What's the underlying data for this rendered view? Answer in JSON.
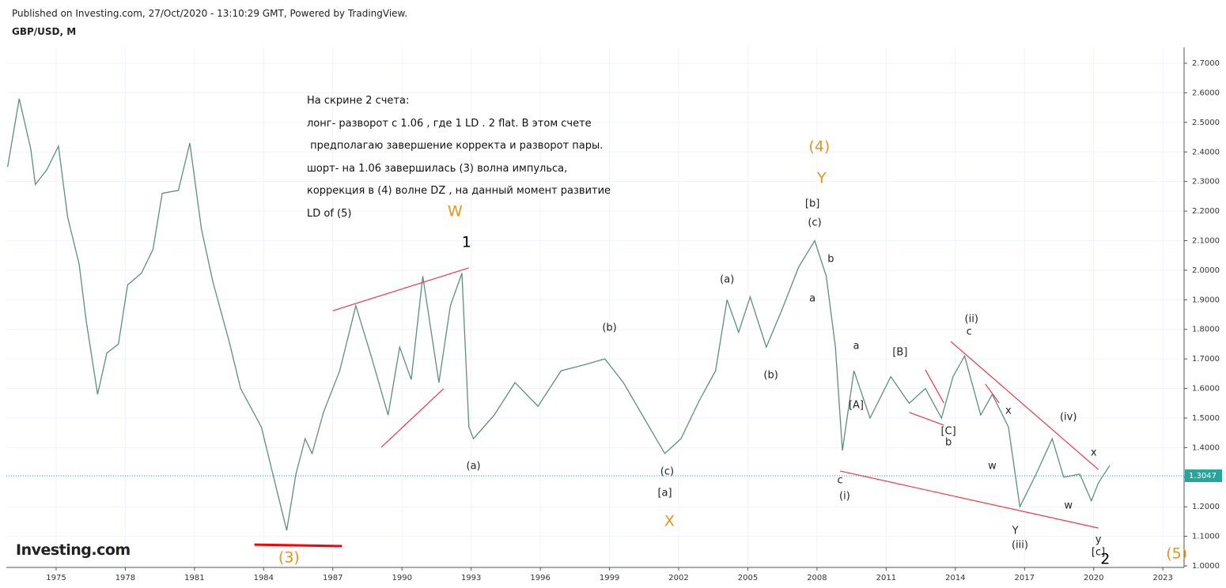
{
  "header": {
    "published": "Published on Investing.com, 27/Oct/2020 - 13:10:29 GMT, Powered by TradingView.",
    "symbol": "GBP/USD, M",
    "logo": "Investing.com"
  },
  "chart_data": {
    "type": "line",
    "color": "#5e8f7c",
    "x": [
      1972.9,
      1973.4,
      1973.9,
      1974.1,
      1974.6,
      1975.1,
      1975.5,
      1976.0,
      1976.3,
      1976.8,
      1977.2,
      1977.7,
      1978.1,
      1978.7,
      1979.2,
      1979.6,
      1980.3,
      1980.8,
      1981.3,
      1981.8,
      1982.5,
      1983.0,
      1983.9,
      1984.4,
      1985.0,
      1985.4,
      1985.8,
      1986.1,
      1986.6,
      1987.3,
      1988.0,
      1988.7,
      1989.4,
      1989.9,
      1990.4,
      1990.9,
      1991.6,
      1992.1,
      1992.6,
      1992.9,
      1993.1,
      1994.0,
      1994.9,
      1995.9,
      1996.9,
      1997.9,
      1998.8,
      1999.6,
      2000.5,
      2001.4,
      2002.1,
      2002.9,
      2003.6,
      2004.1,
      2004.6,
      2005.1,
      2005.8,
      2006.5,
      2007.2,
      2007.9,
      2008.4,
      2008.8,
      2009.1,
      2009.6,
      2010.3,
      2011.2,
      2012.0,
      2012.7,
      2013.4,
      2013.9,
      2014.4,
      2015.1,
      2015.6,
      2016.3,
      2016.8,
      2017.5,
      2018.2,
      2018.7,
      2019.4,
      2019.9,
      2020.2,
      2020.7
    ],
    "values": [
      2.35,
      2.58,
      2.41,
      2.29,
      2.34,
      2.42,
      2.18,
      2.02,
      1.83,
      1.58,
      1.72,
      1.75,
      1.95,
      1.99,
      2.07,
      2.26,
      2.27,
      2.43,
      2.14,
      1.96,
      1.76,
      1.6,
      1.47,
      1.31,
      1.12,
      1.31,
      1.43,
      1.38,
      1.52,
      1.66,
      1.88,
      1.7,
      1.51,
      1.74,
      1.63,
      1.98,
      1.62,
      1.88,
      1.99,
      1.47,
      1.43,
      1.51,
      1.62,
      1.54,
      1.66,
      1.68,
      1.7,
      1.62,
      1.5,
      1.38,
      1.43,
      1.56,
      1.66,
      1.9,
      1.79,
      1.91,
      1.74,
      1.87,
      2.01,
      2.1,
      1.98,
      1.74,
      1.39,
      1.66,
      1.5,
      1.64,
      1.55,
      1.6,
      1.5,
      1.64,
      1.71,
      1.51,
      1.58,
      1.47,
      1.2,
      1.31,
      1.43,
      1.3,
      1.31,
      1.22,
      1.28,
      1.34
    ],
    "xlim": [
      1972.84,
      2023.92
    ],
    "ylim": [
      0.9947,
      2.7535
    ],
    "xticks": [
      1975,
      1978,
      1981,
      1984,
      1987,
      1990,
      1993,
      1996,
      1999,
      2002,
      2005,
      2008,
      2011,
      2014,
      2017,
      2020,
      2023
    ],
    "yticks": [
      {
        "value": 1.0,
        "label": "1.0000"
      },
      {
        "value": 1.1,
        "label": "1.1000"
      },
      {
        "value": 1.2,
        "label": "1.2000"
      },
      {
        "value": 1.3,
        "label": "1.3000"
      },
      {
        "value": 1.4,
        "label": "1.4000"
      },
      {
        "value": 1.5,
        "label": "1.5000"
      },
      {
        "value": 1.6,
        "label": "1.6000"
      },
      {
        "value": 1.7,
        "label": "1.7000"
      },
      {
        "value": 1.8,
        "label": "1.8000"
      },
      {
        "value": 1.9,
        "label": "1.9000"
      },
      {
        "value": 2.0,
        "label": "2.0000"
      },
      {
        "value": 2.1,
        "label": "2.1000"
      },
      {
        "value": 2.2,
        "label": "2.2000"
      },
      {
        "value": 2.3,
        "label": "2.3000"
      },
      {
        "value": 2.4,
        "label": "2.4000"
      },
      {
        "value": 2.5,
        "label": "2.5000"
      },
      {
        "value": 2.6,
        "label": "2.6000"
      },
      {
        "value": 2.7,
        "label": "2.7000"
      }
    ],
    "grid": true,
    "last_price": {
      "value": 1.3047,
      "label": "1.3047",
      "color": "#26a69a"
    },
    "note": [
      "На скрине 2 счета:",
      "лонг- разворот с 1.06 , где 1 LD . 2 flat. В этом счете",
      " предполагаю завершение корректа и разворот пары.",
      "шорт- на 1.06 завершилась (3) волна импульса,",
      "коррекция в (4) волне DZ , на данный момент развитие",
      "LD of (5)"
    ],
    "annotations": [
      {
        "text": "W",
        "x": 1992.3,
        "y": 2.198,
        "color": "#e8941a"
      },
      {
        "text": "1",
        "x": 1992.8,
        "y": 2.093,
        "color": "#000000"
      },
      {
        "text": "(a)",
        "x": 1993.1,
        "y": 1.337,
        "color": "#222222"
      },
      {
        "text": "(b)",
        "x": 1999.0,
        "y": 1.805,
        "color": "#222222"
      },
      {
        "text": "(c)",
        "x": 2001.5,
        "y": 1.318,
        "color": "#222222"
      },
      {
        "text": "[a]",
        "x": 2001.4,
        "y": 1.246,
        "color": "#222222"
      },
      {
        "text": "X",
        "x": 2001.6,
        "y": 1.15,
        "color": "#e8941a"
      },
      {
        "text": "(a)",
        "x": 2004.1,
        "y": 1.968,
        "color": "#222222"
      },
      {
        "text": "(b)",
        "x": 2006.0,
        "y": 1.644,
        "color": "#222222"
      },
      {
        "text": "(c)",
        "x": 2007.9,
        "y": 2.16,
        "color": "#222222"
      },
      {
        "text": "[b]",
        "x": 2007.8,
        "y": 2.224,
        "color": "#222222"
      },
      {
        "text": "Y",
        "x": 2008.2,
        "y": 2.31,
        "color": "#e8941a"
      },
      {
        "text": "(4)",
        "x": 2008.1,
        "y": 2.417,
        "color": "#e8941a"
      },
      {
        "text": "b",
        "x": 2008.6,
        "y": 2.037,
        "color": "#222222"
      },
      {
        "text": "a",
        "x": 2007.8,
        "y": 1.904,
        "color": "#222222"
      },
      {
        "text": "a",
        "x": 2009.7,
        "y": 1.743,
        "color": "#222222"
      },
      {
        "text": "[A]",
        "x": 2009.7,
        "y": 1.543,
        "color": "#222222"
      },
      {
        "text": "c",
        "x": 2009.0,
        "y": 1.289,
        "color": "#222222"
      },
      {
        "text": "(i)",
        "x": 2009.2,
        "y": 1.235,
        "color": "#222222"
      },
      {
        "text": "[B]",
        "x": 2011.6,
        "y": 1.722,
        "color": "#222222"
      },
      {
        "text": "[C]",
        "x": 2013.7,
        "y": 1.454,
        "color": "#222222"
      },
      {
        "text": "b",
        "x": 2013.7,
        "y": 1.417,
        "color": "#222222"
      },
      {
        "text": "(ii)",
        "x": 2014.7,
        "y": 1.834,
        "color": "#222222"
      },
      {
        "text": "c",
        "x": 2014.6,
        "y": 1.791,
        "color": "#222222"
      },
      {
        "text": "x",
        "x": 2016.3,
        "y": 1.524,
        "color": "#222222"
      },
      {
        "text": "w",
        "x": 2015.6,
        "y": 1.337,
        "color": "#222222"
      },
      {
        "text": "Y",
        "x": 2016.6,
        "y": 1.118,
        "color": "#222222"
      },
      {
        "text": "(iii)",
        "x": 2016.8,
        "y": 1.07,
        "color": "#222222"
      },
      {
        "text": "(iv)",
        "x": 2018.9,
        "y": 1.503,
        "color": "#222222"
      },
      {
        "text": "w",
        "x": 2018.9,
        "y": 1.203,
        "color": "#222222"
      },
      {
        "text": "x",
        "x": 2020.0,
        "y": 1.382,
        "color": "#222222"
      },
      {
        "text": "y",
        "x": 2020.2,
        "y": 1.088,
        "color": "#222222"
      },
      {
        "text": "[c]",
        "x": 2020.2,
        "y": 1.045,
        "color": "#222222"
      },
      {
        "text": "2",
        "x": 2020.5,
        "y": 1.021,
        "color": "#000000"
      },
      {
        "text": "(3)",
        "x": 1985.1,
        "y": 1.027,
        "color": "#e8941a"
      },
      {
        "text": "(5)",
        "x": 2023.6,
        "y": 1.04,
        "color": "#e8941a"
      }
    ],
    "trendlines": [
      {
        "x1": 1987.0,
        "y1": 1.863,
        "x2": 1992.9,
        "y2": 2.008,
        "color": "#f23645"
      },
      {
        "x1": 1989.1,
        "y1": 1.401,
        "x2": 1991.8,
        "y2": 1.599,
        "color": "#f23645"
      },
      {
        "x1": 2009.0,
        "y1": 1.321,
        "x2": 2020.2,
        "y2": 1.128,
        "color": "#f23645"
      },
      {
        "x1": 2013.8,
        "y1": 1.759,
        "x2": 2020.2,
        "y2": 1.326,
        "color": "#f23645"
      },
      {
        "x1": 2012.7,
        "y1": 1.663,
        "x2": 2013.5,
        "y2": 1.551,
        "color": "#f23645"
      },
      {
        "x1": 2012.0,
        "y1": 1.519,
        "x2": 2013.5,
        "y2": 1.476,
        "color": "#f23645"
      },
      {
        "x1": 2015.3,
        "y1": 1.615,
        "x2": 2015.9,
        "y2": 1.551,
        "color": "#f23645"
      },
      {
        "x1": 1983.6,
        "y1": 1.072,
        "x2": 1987.4,
        "y2": 1.067,
        "color": "#ff0000"
      }
    ]
  }
}
